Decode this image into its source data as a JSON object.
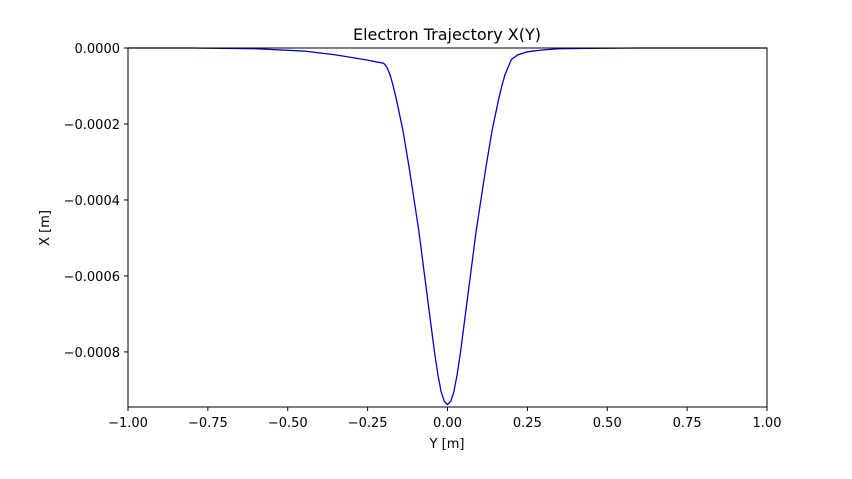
{
  "chart_data": {
    "type": "line",
    "title": "Electron Trajectory X(Y)",
    "xlabel": "Y [m]",
    "ylabel": "X [m]",
    "xlim": [
      -1.0,
      1.0
    ],
    "ylim": [
      -0.000945,
      0.0
    ],
    "grid": false,
    "legend": "none",
    "x_ticks": [
      -1.0,
      -0.75,
      -0.5,
      -0.25,
      0.0,
      0.25,
      0.5,
      0.75,
      1.0
    ],
    "x_tick_labels": [
      "−1.00",
      "−0.75",
      "−0.50",
      "−0.25",
      "0.00",
      "0.25",
      "0.50",
      "0.75",
      "1.00"
    ],
    "y_ticks": [
      0.0,
      -0.0002,
      -0.0004,
      -0.0006,
      -0.0008
    ],
    "y_tick_labels": [
      "0.0000",
      "−0.0002",
      "−0.0004",
      "−0.0006",
      "−0.0008"
    ],
    "series": [
      {
        "color": "#0000cc",
        "x": [
          -1.0,
          -0.8,
          -0.6,
          -0.45,
          -0.35,
          -0.3,
          -0.25,
          -0.22,
          -0.2,
          -0.19,
          -0.18,
          -0.17,
          -0.16,
          -0.15,
          -0.14,
          -0.13,
          -0.12,
          -0.11,
          -0.1,
          -0.09,
          -0.08,
          -0.07,
          -0.06,
          -0.05,
          -0.04,
          -0.03,
          -0.02,
          -0.01,
          0.0,
          0.01,
          0.02,
          0.03,
          0.04,
          0.05,
          0.06,
          0.07,
          0.08,
          0.09,
          0.1,
          0.11,
          0.12,
          0.13,
          0.14,
          0.15,
          0.16,
          0.17,
          0.18,
          0.19,
          0.2,
          0.22,
          0.25,
          0.3,
          0.35,
          0.45,
          0.6,
          0.8,
          1.0
        ],
        "y": [
          0.0,
          0.0,
          -2e-06,
          -8e-06,
          -1.8e-05,
          -2.5e-05,
          -3.2e-05,
          -3.7e-05,
          -4e-05,
          -5e-05,
          -7e-05,
          -0.0001,
          -0.000135,
          -0.000175,
          -0.000215,
          -0.000265,
          -0.000315,
          -0.00037,
          -0.000425,
          -0.00048,
          -0.000545,
          -0.00061,
          -0.000675,
          -0.00074,
          -0.000805,
          -0.00086,
          -0.000905,
          -0.00093,
          -0.000939,
          -0.00093,
          -0.000905,
          -0.00086,
          -0.000805,
          -0.00074,
          -0.000675,
          -0.00061,
          -0.000545,
          -0.00048,
          -0.000425,
          -0.00037,
          -0.000315,
          -0.000265,
          -0.000215,
          -0.000175,
          -0.000135,
          -0.0001,
          -7e-05,
          -5e-05,
          -3e-05,
          -1.8e-05,
          -1e-05,
          -5e-06,
          -2e-06,
          -1e-06,
          0.0,
          0.0,
          0.0
        ]
      }
    ]
  }
}
